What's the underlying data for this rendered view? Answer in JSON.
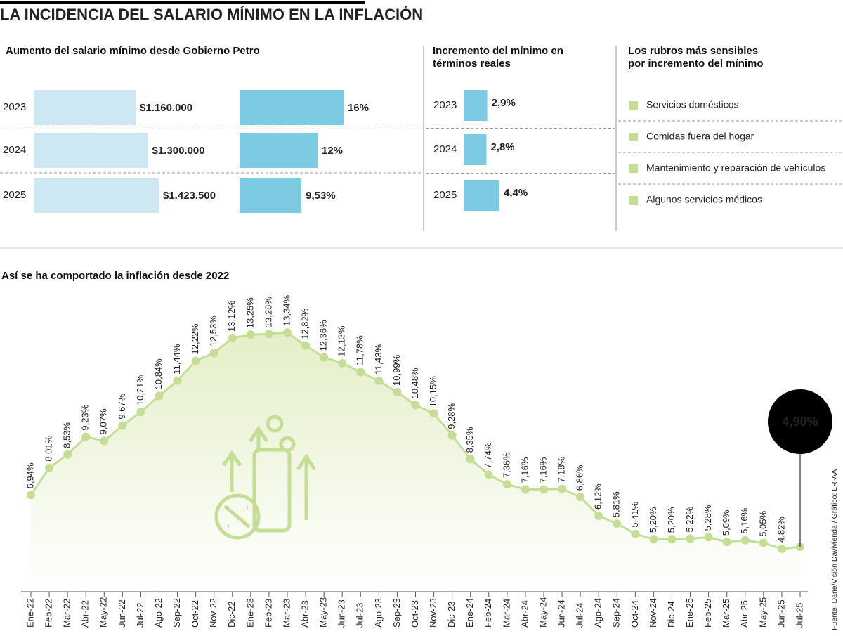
{
  "title": "LA INCIDENCIA DEL SALARIO MÍNIMO EN LA INFLACIÓN",
  "source": "Fuente: Dane/Visión Davivienda / Gráfico: LR-AA",
  "rubros": {
    "title": "Los rubros más sensibles por incremento del mínimo",
    "color": "#c5de96",
    "items": [
      "Servicios domésticos",
      "Comidas fuera del hogar",
      "Mantenimiento y reparación de vehículos",
      "Algunos servicios médicos"
    ]
  },
  "chart_data": [
    {
      "type": "bar",
      "orientation": "horizontal",
      "title": "Aumento del salario mínimo desde Gobierno Petro",
      "categories": [
        "2023",
        "2024",
        "2025"
      ],
      "series": [
        {
          "color": "#cde8f3",
          "values": [
            1160000,
            1300000,
            1423500
          ],
          "value_labels": [
            "$1.160.000",
            "$1.300.000",
            "$1.423.500"
          ]
        },
        {
          "color": "#7ccbe3",
          "values": [
            16,
            12,
            9.53
          ],
          "value_labels": [
            "16%",
            "12%",
            "9,53%"
          ]
        }
      ]
    },
    {
      "type": "bar",
      "orientation": "horizontal",
      "title": "Incremento del mínimo en términos reales",
      "categories": [
        "2023",
        "2024",
        "2025"
      ],
      "color": "#7ccbe3",
      "values": [
        2.9,
        2.8,
        4.4
      ],
      "value_labels": [
        "2,9%",
        "2,8%",
        "4,4%"
      ]
    },
    {
      "type": "line",
      "title": "Así se ha comportado la inflación desde 2022",
      "color": "#c5de96",
      "callout_color": "#000000",
      "categories": [
        "Ene-22",
        "Feb-22",
        "Mar-22",
        "Abr-22",
        "May-22",
        "Jun-22",
        "Jul-22",
        "Ago-22",
        "Sep-22",
        "Oct-22",
        "Nov-22",
        "Dic-22",
        "Ene-23",
        "Feb-23",
        "Mar-23",
        "Abr-23",
        "May-23",
        "Jun-23",
        "Jul-23",
        "Ago-23",
        "Sep-23",
        "Oct-23",
        "Nov-23",
        "Dic-23",
        "Ene-24",
        "Feb-24",
        "Mar-24",
        "Abr-24",
        "May-24",
        "Jun-24",
        "Jul-24",
        "Ago-24",
        "Sep-24",
        "Oct-24",
        "Nov-24",
        "Dic-24",
        "Ene-25",
        "Feb-25",
        "Mar-25",
        "Abr-25",
        "May-25",
        "Jun-25",
        "Jul-25"
      ],
      "values": [
        6.94,
        8.01,
        8.53,
        9.23,
        9.07,
        9.67,
        10.21,
        10.84,
        11.44,
        12.22,
        12.53,
        13.12,
        13.25,
        13.28,
        13.34,
        12.82,
        12.36,
        12.13,
        11.78,
        11.43,
        10.99,
        10.48,
        10.15,
        9.28,
        8.35,
        7.74,
        7.36,
        7.16,
        7.16,
        7.18,
        6.86,
        6.12,
        5.81,
        5.41,
        5.2,
        5.2,
        5.22,
        5.28,
        5.09,
        5.16,
        5.05,
        4.82,
        4.9
      ],
      "value_labels": [
        "6,94%",
        "8,01%",
        "8,53%",
        "9,23%",
        "9,07%",
        "9,67%",
        "10,21%",
        "10,84%",
        "11,44%",
        "12,22%",
        "12,53%",
        "13,12%",
        "13,25%",
        "13,28%",
        "13,34%",
        "12,82%",
        "12,36%",
        "12,13%",
        "11,78%",
        "11,43%",
        "10,99%",
        "10,48%",
        "10,15%",
        "9,28%",
        "8,35%",
        "7,74%",
        "7,36%",
        "7,16%",
        "7,16%",
        "7,18%",
        "6,86%",
        "6,12%",
        "5,81%",
        "5,41%",
        "5,20%",
        "5,20%",
        "5,22%",
        "5,28%",
        "5,09%",
        "5,16%",
        "5,05%",
        "4,82%",
        "4,90%"
      ]
    }
  ]
}
